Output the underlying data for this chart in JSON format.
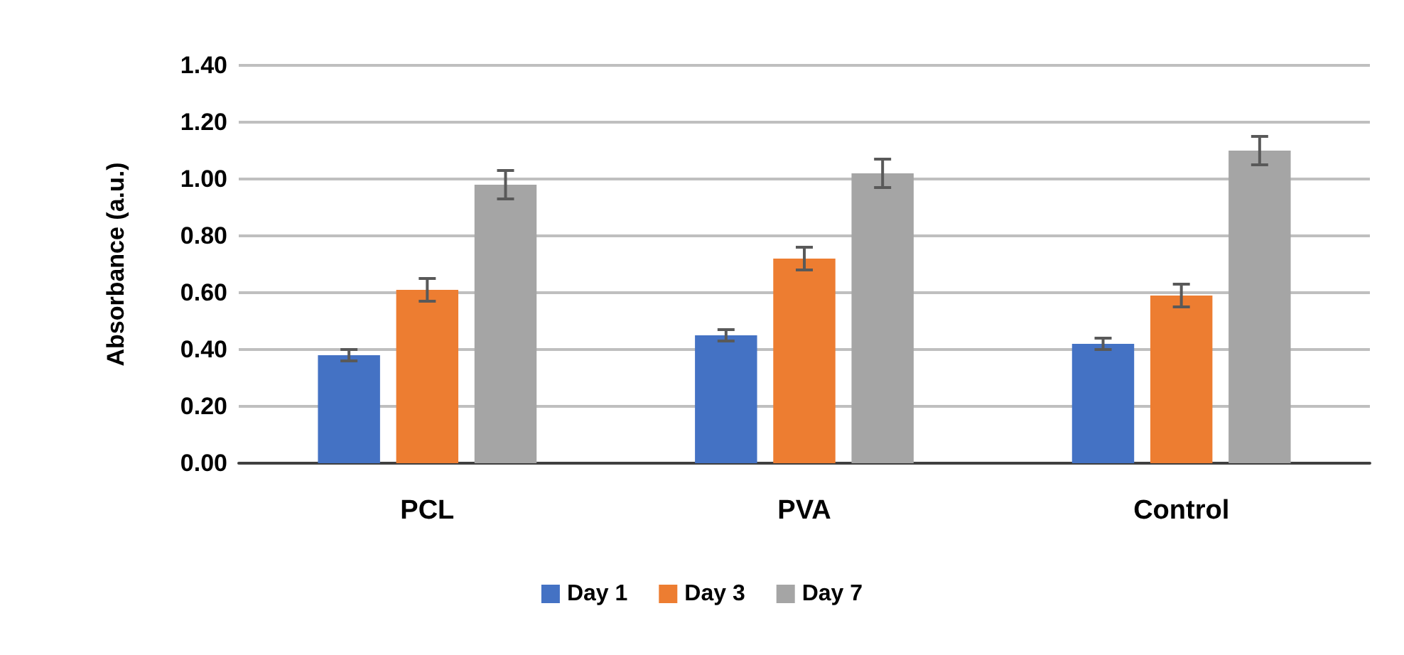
{
  "chart_data": {
    "type": "bar",
    "ylabel": "Absorbance (a.u.)",
    "categories": [
      "PCL",
      "PVA",
      "Control"
    ],
    "series": [
      {
        "name": "Day 1",
        "color": "#4472c4",
        "values": [
          0.38,
          0.45,
          0.42
        ],
        "errors": [
          0.02,
          0.02,
          0.02
        ]
      },
      {
        "name": "Day 3",
        "color": "#ed7d31",
        "values": [
          0.61,
          0.72,
          0.59
        ],
        "errors": [
          0.04,
          0.04,
          0.04
        ]
      },
      {
        "name": "Day 7",
        "color": "#a5a5a5",
        "values": [
          0.98,
          1.02,
          1.1
        ],
        "errors": [
          0.05,
          0.05,
          0.05
        ]
      }
    ],
    "ylim": [
      0,
      1.4
    ],
    "yticks": [
      {
        "value": 0,
        "label": "0.00"
      },
      {
        "value": 0.2,
        "label": "0.20"
      },
      {
        "value": 0.4,
        "label": "0.40"
      },
      {
        "value": 0.6,
        "label": "0.60"
      },
      {
        "value": 0.8,
        "label": "0.80"
      },
      {
        "value": 1,
        "label": "1.00"
      },
      {
        "value": 1.2,
        "label": "1.20"
      },
      {
        "value": 1.4,
        "label": "1.40"
      }
    ],
    "grid": "y",
    "legend": "bottom"
  }
}
